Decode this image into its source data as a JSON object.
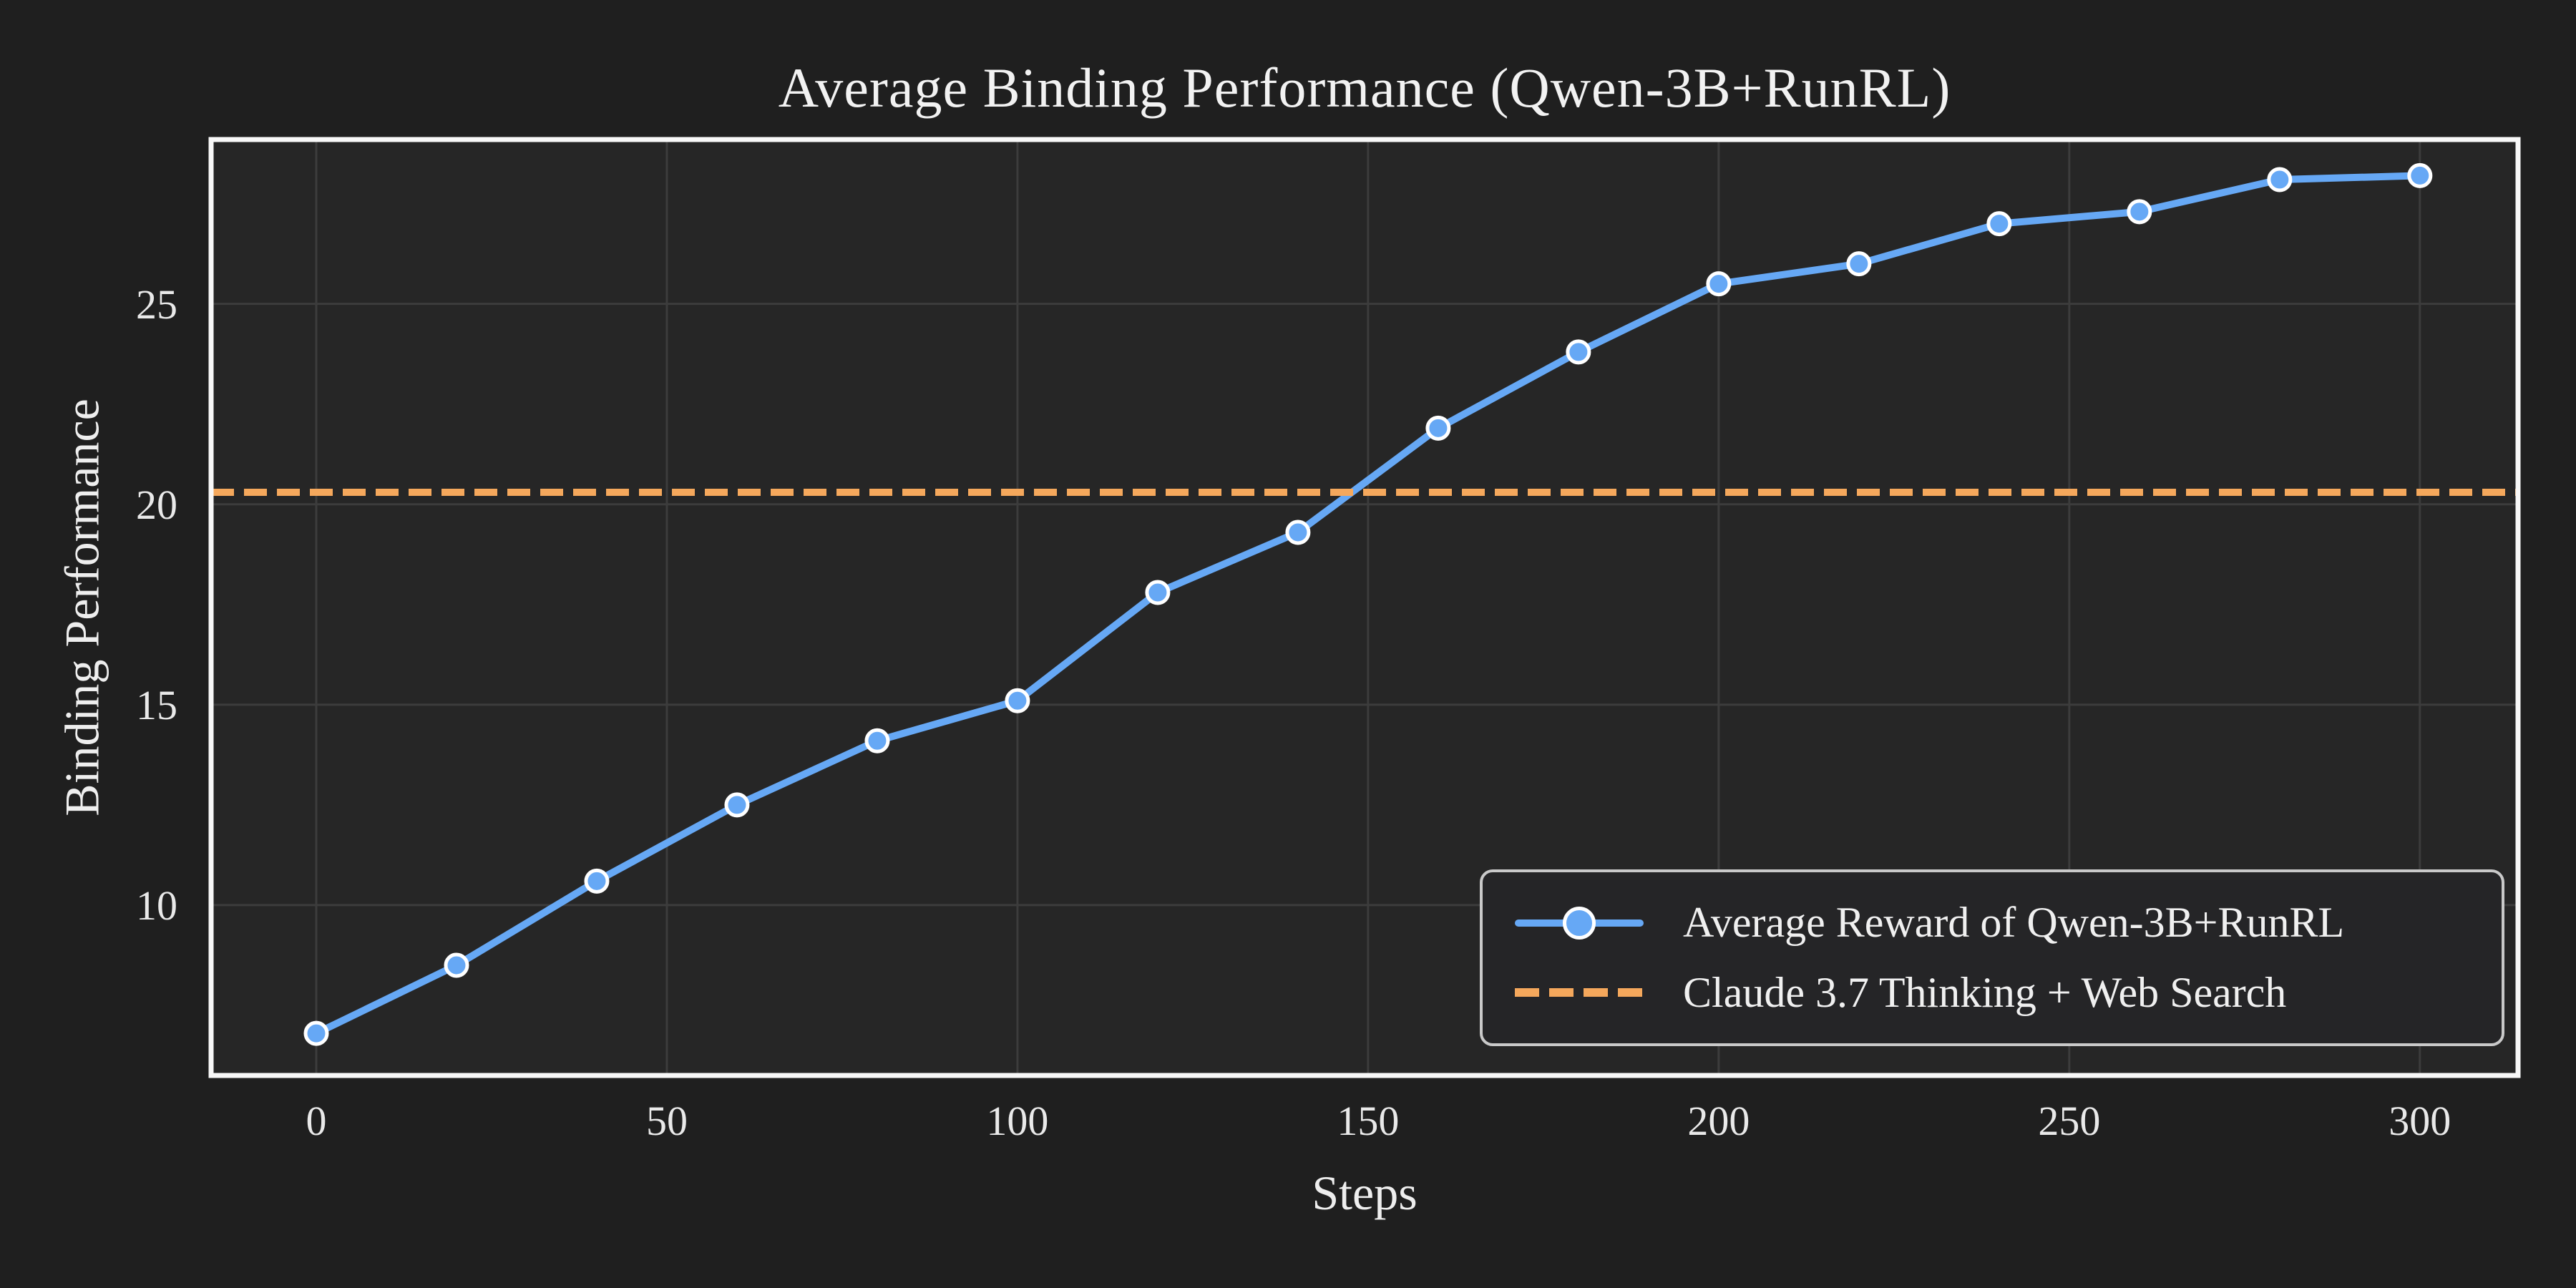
{
  "chart_data": {
    "type": "line",
    "title": "Average Binding Performance (Qwen-3B+RunRL)",
    "xlabel": "Steps",
    "ylabel": "Binding Performance",
    "x": [
      0,
      20,
      40,
      60,
      80,
      100,
      120,
      140,
      160,
      180,
      200,
      220,
      240,
      260,
      280,
      300
    ],
    "series": [
      {
        "name": "Average Reward of Qwen-3B+RunRL",
        "type": "line",
        "color": "#66a8f5",
        "marker": "circle",
        "marker_edge_color": "#ffffff",
        "values": [
          6.8,
          8.5,
          10.6,
          12.5,
          14.1,
          15.1,
          17.8,
          19.3,
          21.9,
          23.8,
          25.5,
          26.0,
          27.0,
          27.3,
          28.1,
          28.2
        ]
      },
      {
        "name": "Claude 3.7 Thinking + Web Search",
        "type": "hline",
        "style": "dashed",
        "color": "#f5a85c",
        "value": 20.3
      }
    ],
    "xticks": [
      0,
      50,
      100,
      150,
      200,
      250,
      300
    ],
    "yticks": [
      10,
      15,
      20,
      25
    ],
    "xlim": [
      -15,
      314
    ],
    "ylim": [
      5.75,
      29.1
    ],
    "grid": true,
    "legend_position": "lower right",
    "colors": {
      "figure_bg": "#1f1f1f",
      "axes_bg": "#262626",
      "grid": "#3c3c3c",
      "spine": "#f8f8f8",
      "text": "#f0f0f0",
      "tick_text": "#e9e9e9",
      "legend_border": "#c9c9c9",
      "legend_bg": "#252527"
    }
  }
}
